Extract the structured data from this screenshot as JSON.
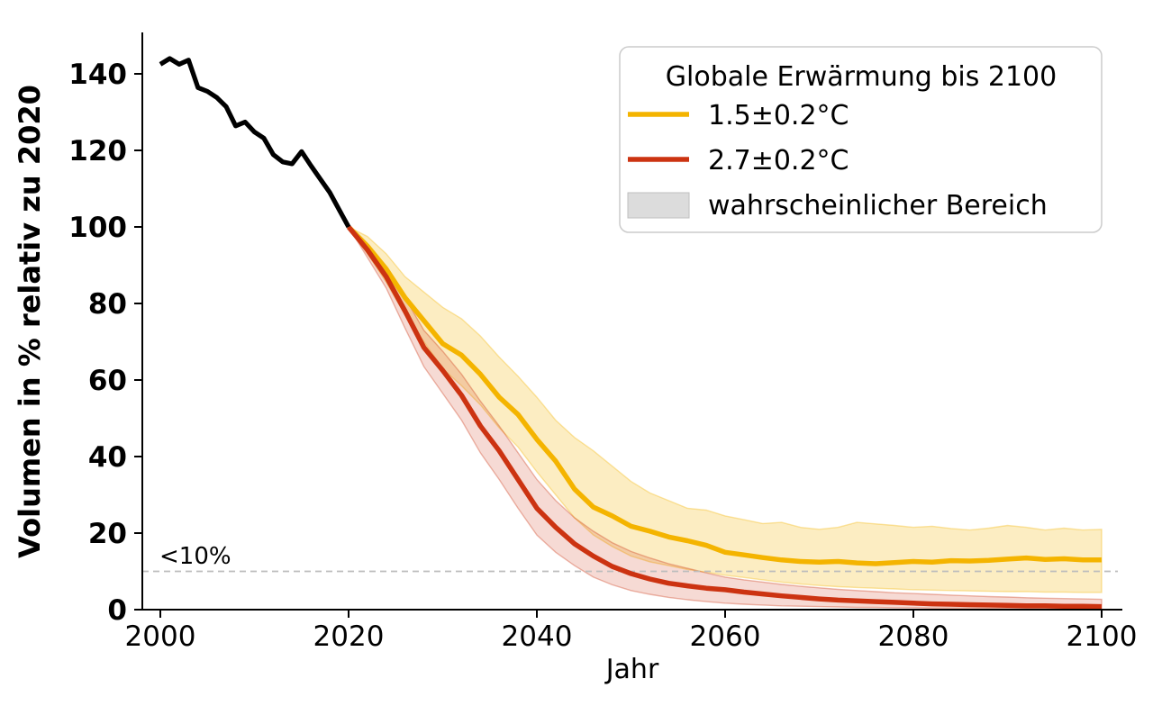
{
  "chart_data": {
    "type": "line",
    "title": "",
    "xlabel": "Jahr",
    "ylabel": "Volumen in % relativ zu 2020",
    "xlim": [
      1998,
      2102
    ],
    "ylim": [
      0,
      150
    ],
    "xticks": [
      2000,
      2020,
      2040,
      2060,
      2080,
      2100
    ],
    "yticks": [
      0,
      20,
      40,
      60,
      80,
      100,
      120,
      140
    ],
    "grid": false,
    "background": "#ffffff",
    "threshold": {
      "value": 10,
      "label": "<10%",
      "line_color": "#bdbdbd",
      "label_color": "#a8a8a8"
    },
    "legend": {
      "position": "upper right",
      "title": "Globale Erwärmung bis 2100",
      "entries": [
        {
          "label": "1.5±0.2°C",
          "type": "line",
          "color": "#F4B400"
        },
        {
          "label": "2.7±0.2°C",
          "type": "line",
          "color": "#CC3311"
        },
        {
          "label": "wahrscheinlicher Bereich",
          "type": "patch",
          "color": "#DCDCDC",
          "edge_color": "#bfbfbf"
        }
      ]
    },
    "series": [
      {
        "name": "historical",
        "color": "#000000",
        "line_width": 5.2,
        "x": [
          2000,
          2001,
          2002,
          2003,
          2004,
          2005,
          2006,
          2007,
          2008,
          2009,
          2010,
          2011,
          2012,
          2013,
          2014,
          2015,
          2016,
          2017,
          2018,
          2019,
          2020
        ],
        "y": [
          142.5,
          144.0,
          142.5,
          143.6,
          136.4,
          135.4,
          133.8,
          131.4,
          126.4,
          127.4,
          124.8,
          123.2,
          118.9,
          117.0,
          116.5,
          119.7,
          116.0,
          112.5,
          109.0,
          104.5,
          100.0
        ]
      },
      {
        "name": "scenario_1_5C",
        "label": "1.5±0.2°C",
        "color": "#F4B400",
        "line_width": 5.5,
        "band_fill_opacity": 0.24,
        "x": [
          2020,
          2022,
          2024,
          2026,
          2028,
          2030,
          2032,
          2034,
          2036,
          2038,
          2040,
          2042,
          2044,
          2046,
          2048,
          2050,
          2052,
          2054,
          2056,
          2058,
          2060,
          2062,
          2064,
          2066,
          2068,
          2070,
          2072,
          2074,
          2076,
          2078,
          2080,
          2082,
          2084,
          2086,
          2088,
          2090,
          2092,
          2094,
          2096,
          2098,
          2100
        ],
        "y": [
          100,
          95,
          89,
          81.5,
          75.5,
          69.5,
          66.5,
          61.5,
          55.5,
          51,
          44.5,
          38.8,
          31.5,
          26.8,
          24.5,
          21.8,
          20.5,
          19,
          18,
          16.8,
          15,
          14.3,
          13.6,
          13,
          12.6,
          12.4,
          12.6,
          12.2,
          12,
          12.3,
          12.6,
          12.4,
          12.8,
          12.7,
          12.9,
          13.2,
          13.5,
          13.1,
          13.3,
          13,
          13
        ],
        "band_hi": [
          100,
          97.5,
          93,
          87,
          83,
          79,
          76,
          71.5,
          66,
          61,
          55.5,
          49.5,
          45,
          41.5,
          37.5,
          33.5,
          30.5,
          28.5,
          26.5,
          26,
          24.5,
          23.5,
          22.5,
          22.8,
          21.5,
          21,
          21.5,
          22.8,
          22.4,
          22,
          21.5,
          21.8,
          21.2,
          20.8,
          21.3,
          22,
          21.5,
          20.8,
          21.3,
          20.8,
          21
        ],
        "band_lo": [
          100,
          93,
          85.5,
          77,
          70,
          63,
          58.5,
          53.5,
          47.5,
          42.5,
          36,
          30,
          24,
          19.5,
          16.5,
          14,
          12.5,
          11.5,
          10.5,
          9.8,
          9,
          8.4,
          7.8,
          7.2,
          6.7,
          6.3,
          6,
          5.8,
          5.6,
          5.4,
          5.2,
          5.1,
          5,
          4.9,
          4.8,
          4.7,
          4.7,
          4.6,
          4.6,
          4.5,
          4.5
        ]
      },
      {
        "name": "scenario_2_7C",
        "label": "2.7±0.2°C",
        "color": "#CC3311",
        "line_width": 5.5,
        "band_fill_opacity": 0.18,
        "x": [
          2020,
          2022,
          2024,
          2026,
          2028,
          2030,
          2032,
          2034,
          2036,
          2038,
          2040,
          2042,
          2044,
          2046,
          2048,
          2050,
          2052,
          2054,
          2056,
          2058,
          2060,
          2062,
          2064,
          2066,
          2068,
          2070,
          2072,
          2074,
          2076,
          2078,
          2080,
          2082,
          2084,
          2086,
          2088,
          2090,
          2092,
          2094,
          2096,
          2098,
          2100
        ],
        "y": [
          100,
          94,
          87,
          78,
          68.5,
          62.5,
          56,
          48,
          41.5,
          34,
          26.5,
          21.5,
          17.2,
          14,
          11.3,
          9.4,
          8,
          6.9,
          6.2,
          5.6,
          5.2,
          4.6,
          4.1,
          3.6,
          3.2,
          2.8,
          2.5,
          2.3,
          2.1,
          1.9,
          1.7,
          1.5,
          1.4,
          1.3,
          1.2,
          1.1,
          1.0,
          1.0,
          0.9,
          0.9,
          0.8
        ],
        "band_hi": [
          100,
          95.5,
          89.5,
          81.5,
          73,
          67.5,
          61.5,
          54.5,
          48,
          41,
          34,
          28.5,
          24,
          20.5,
          17.5,
          15.2,
          13.5,
          12,
          10.8,
          9.6,
          8.5,
          7.8,
          7.2,
          6.6,
          6.1,
          5.7,
          5.3,
          5,
          4.7,
          4.4,
          4.2,
          4,
          3.8,
          3.6,
          3.4,
          3.3,
          3.1,
          3,
          2.9,
          2.8,
          2.7
        ],
        "band_lo": [
          100,
          92,
          84,
          73.5,
          63.5,
          56.5,
          49.5,
          41,
          34,
          26.5,
          19.5,
          15,
          11.5,
          8.5,
          6.5,
          5,
          4,
          3.2,
          2.6,
          2.1,
          1.7,
          1.4,
          1.2,
          1,
          0.9,
          0.8,
          0.7,
          0.6,
          0.6,
          0.5,
          0.5,
          0.4,
          0.4,
          0.4,
          0.3,
          0.3,
          0.3,
          0.3,
          0.2,
          0.2,
          0.2
        ]
      }
    ]
  }
}
